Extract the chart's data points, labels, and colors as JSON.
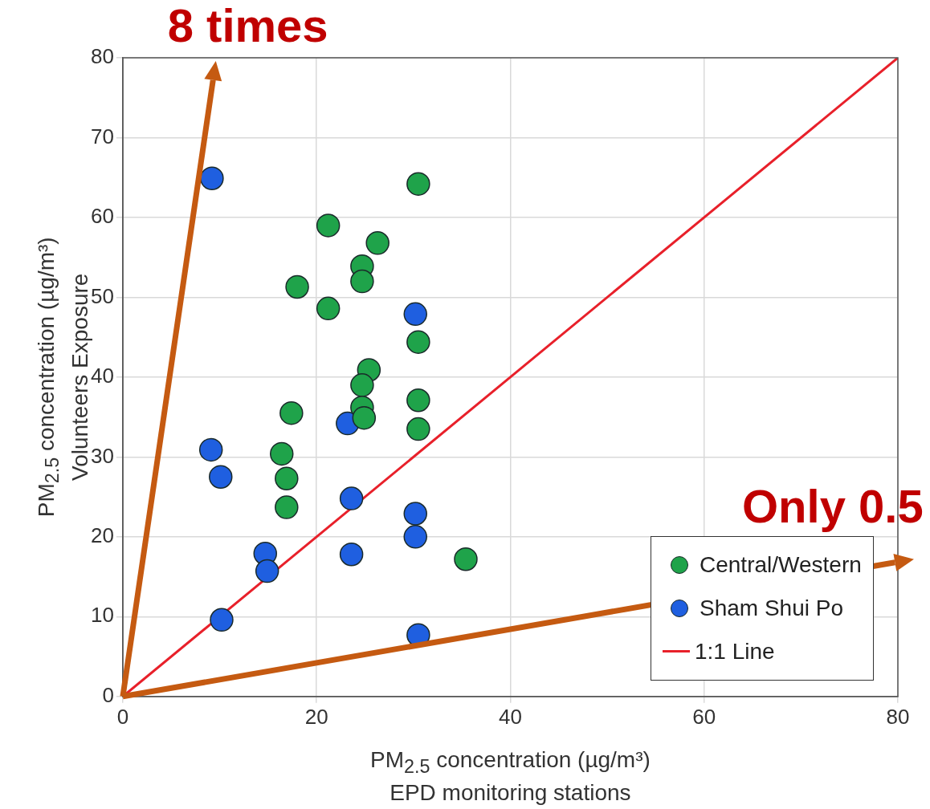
{
  "chart_data": {
    "type": "scatter",
    "xlabel": "PM$_{2.5}$ concentration (µg/m³)\nEPD monitoring stations",
    "ylabel": "PM$_{2.5}$ concentration (µg/m³)\nVolunteers Exposure",
    "annotations": [
      "8 times",
      "Only 0.5"
    ],
    "xlim": [
      0,
      80
    ],
    "ylim": [
      0,
      80
    ],
    "xticks": [
      0,
      20,
      40,
      60,
      80
    ],
    "yticks": [
      0,
      10,
      20,
      30,
      40,
      50,
      60,
      70,
      80
    ],
    "grid": true,
    "legend": "bottom right",
    "marker": "circle",
    "series": [
      {
        "name": "Central/Western",
        "color": "#1fa34a",
        "x": [
          30.5,
          21.2,
          26.3,
          24.7,
          24.7,
          18.0,
          21.2,
          30.5,
          25.4,
          24.7,
          24.7,
          24.9,
          17.4,
          30.5,
          30.5,
          16.4,
          16.9,
          16.9,
          35.4
        ],
        "values": [
          64.2,
          59.0,
          56.8,
          53.9,
          52.0,
          51.3,
          48.6,
          44.4,
          40.9,
          39.0,
          36.2,
          34.9,
          35.5,
          37.1,
          33.5,
          30.4,
          27.3,
          23.7,
          17.2
        ]
      },
      {
        "name": "Sham Shui Po",
        "color": "#1f5fe0",
        "x": [
          9.2,
          30.2,
          23.2,
          9.1,
          10.1,
          23.6,
          30.2,
          30.2,
          14.7,
          14.9,
          23.6,
          10.2,
          30.5
        ],
        "values": [
          64.9,
          47.9,
          34.2,
          30.9,
          27.5,
          24.8,
          22.9,
          20.0,
          17.9,
          15.7,
          17.8,
          9.6,
          7.7
        ]
      },
      {
        "name": "1:1 Line",
        "type": "line",
        "color": "#e8202a",
        "marker": "none",
        "x": [
          0,
          80
        ],
        "values": [
          0,
          80
        ]
      }
    ]
  }
}
